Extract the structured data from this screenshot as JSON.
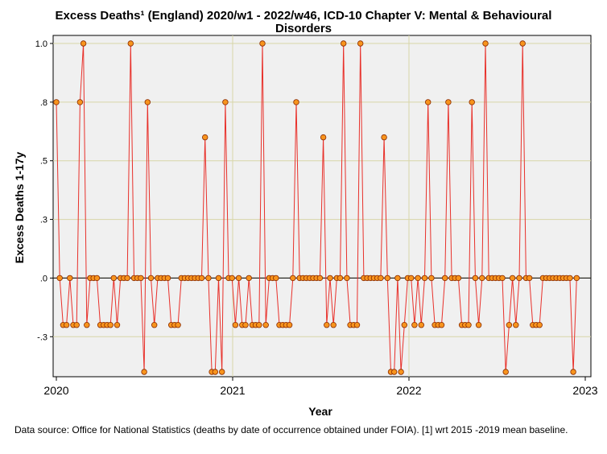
{
  "chart_data": {
    "type": "line",
    "title": "Excess Deaths¹ (England) 2020/w1 - 2022/w46, ICD-10 Chapter V: Mental & Behavioural Disorders",
    "xlabel": "Year",
    "ylabel": "Excess Deaths 1-17y",
    "x_ticks": [
      "2020",
      "2021",
      "2022",
      "2023"
    ],
    "y_ticks": [
      "-.3",
      ".0",
      ".3",
      ".5",
      ".8",
      "1.0"
    ],
    "y_tick_values": [
      -0.25,
      0,
      0.25,
      0.5,
      0.75,
      1.0
    ],
    "xlim": [
      2020,
      2023
    ],
    "ylim": [
      -0.4,
      1.0
    ],
    "grid": true,
    "reference_line": 0,
    "series": [
      {
        "name": "Excess Deaths 1-17y",
        "line_color": "#e8302a",
        "marker_fill": "#f7941d",
        "marker_stroke": "#8a2a00",
        "start": "2020/w1",
        "values": [
          0.75,
          0,
          -0.2,
          -0.2,
          0,
          -0.2,
          -0.2,
          0.75,
          1.0,
          -0.2,
          0,
          0,
          0,
          -0.2,
          -0.2,
          -0.2,
          -0.2,
          0,
          -0.2,
          0,
          0,
          0,
          1.0,
          0,
          0,
          0,
          -0.4,
          0.75,
          0,
          -0.2,
          0,
          0,
          0,
          0,
          -0.2,
          -0.2,
          -0.2,
          0,
          0,
          0,
          0,
          0,
          0,
          0,
          0.6,
          0,
          -0.4,
          -0.4,
          0,
          -0.4,
          0.75,
          0,
          0,
          -0.2,
          0,
          -0.2,
          -0.2,
          0,
          -0.2,
          -0.2,
          -0.2,
          1.0,
          -0.2,
          0,
          0,
          0,
          -0.2,
          -0.2,
          -0.2,
          -0.2,
          0,
          0.75,
          0,
          0,
          0,
          0,
          0,
          0,
          0,
          0.6,
          -0.2,
          0,
          -0.2,
          0,
          0,
          1.0,
          0,
          -0.2,
          -0.2,
          -0.2,
          1.0,
          0,
          0,
          0,
          0,
          0,
          0,
          0.6,
          0,
          -0.4,
          -0.4,
          0,
          -0.4,
          -0.2,
          0,
          0,
          -0.2,
          0,
          -0.2,
          0,
          0.75,
          0,
          -0.2,
          -0.2,
          -0.2,
          0,
          0.75,
          0,
          0,
          0,
          -0.2,
          -0.2,
          -0.2,
          0.75,
          0,
          -0.2,
          0,
          1.0,
          0,
          0,
          0,
          0,
          0,
          -0.4,
          -0.2,
          0,
          -0.2,
          0,
          1.0,
          0,
          0,
          -0.2,
          -0.2,
          -0.2,
          0,
          0,
          0,
          0,
          0,
          0,
          0,
          0,
          0,
          -0.4,
          0
        ]
      }
    ]
  },
  "footnote": "Data source: Office for National Statistics (deaths by date of occurrence obtained under FOIA). [1] wrt 2015 -2019 mean baseline."
}
